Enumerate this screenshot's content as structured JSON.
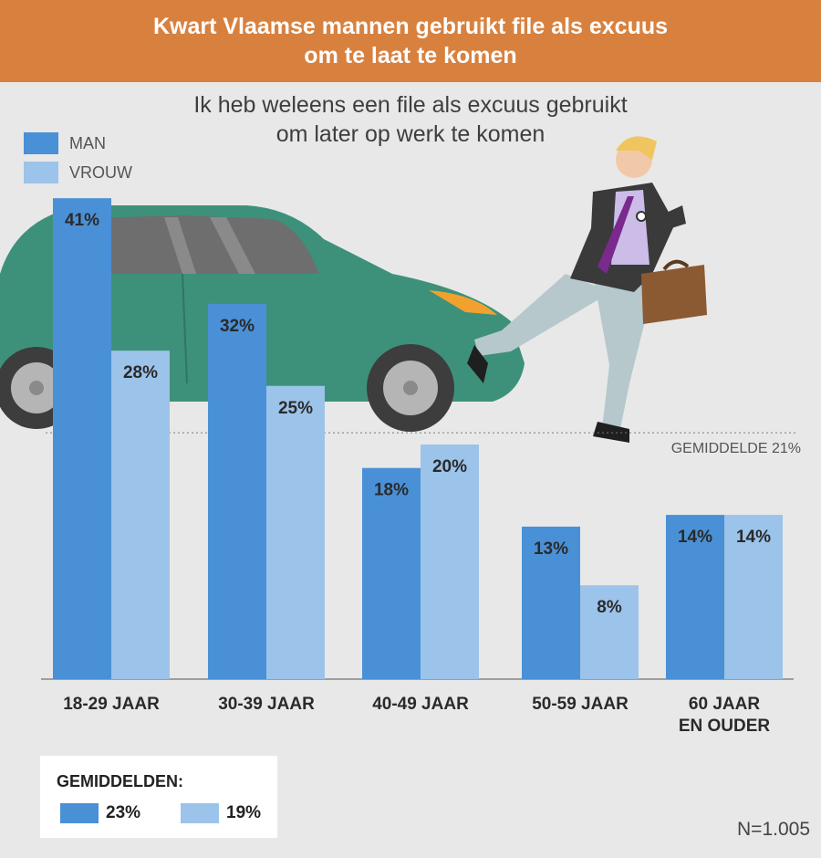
{
  "header": {
    "title_line1": "Kwart Vlaamse mannen gebruikt file als excuus",
    "title_line2": "om te laat te komen"
  },
  "subtitle_line1": "Ik heb weleens een file als excuus gebruikt",
  "subtitle_line2": "om later op werk te komen",
  "colors": {
    "man": "#4a90d6",
    "vrouw": "#9cc3ea",
    "header": "#d8813f",
    "background": "#e8e8e8"
  },
  "chart_data": {
    "type": "bar",
    "categories": [
      [
        "18-29 JAAR"
      ],
      [
        "30-39 JAAR"
      ],
      [
        "40-49 JAAR"
      ],
      [
        "50-59 JAAR"
      ],
      [
        "60 JAAR",
        "EN OUDER"
      ]
    ],
    "series": [
      {
        "name": "MAN",
        "values": [
          41,
          32,
          18,
          13,
          14
        ]
      },
      {
        "name": "VROUW",
        "values": [
          28,
          25,
          20,
          8,
          14
        ]
      }
    ],
    "value_labels": {
      "MAN": [
        "41%",
        "32%",
        "18%",
        "13%",
        "14%"
      ],
      "VROUW": [
        "28%",
        "25%",
        "20%",
        "8%",
        "14%"
      ]
    },
    "average_line": {
      "value": 21,
      "label": "GEMIDDELDE 21%"
    },
    "ylim": [
      0,
      41
    ],
    "legend_position": "top-left",
    "grid": false
  },
  "averages": {
    "title": "GEMIDDELDEN:",
    "man": "23%",
    "vrouw": "19%"
  },
  "sample_size": "N=1.005"
}
